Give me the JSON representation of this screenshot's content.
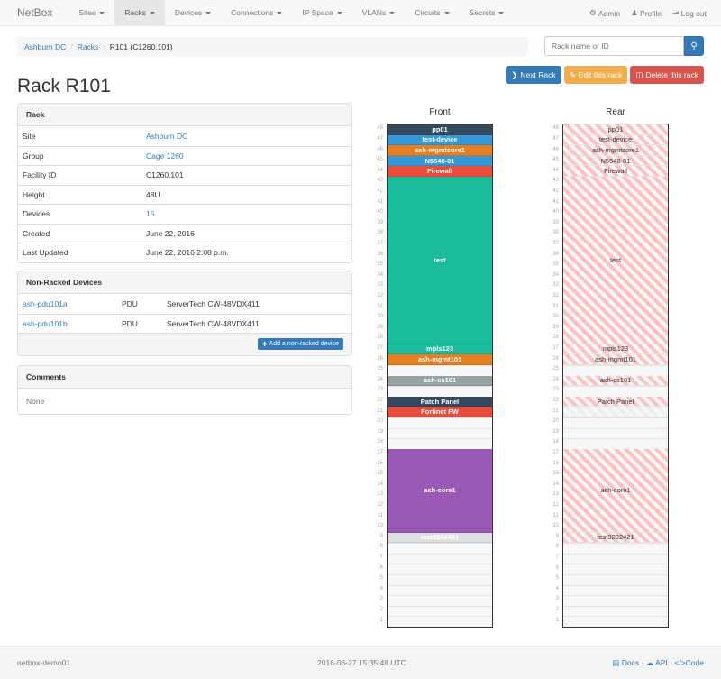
{
  "navbar": {
    "brand": "NetBox",
    "items": [
      {
        "label": "Sites"
      },
      {
        "label": "Racks",
        "active": true
      },
      {
        "label": "Devices"
      },
      {
        "label": "Connections"
      },
      {
        "label": "IP Space"
      },
      {
        "label": "VLANs"
      },
      {
        "label": "Circuits"
      },
      {
        "label": "Secrets"
      }
    ],
    "right": [
      {
        "icon": "gear-icon",
        "label": "Admin"
      },
      {
        "icon": "user-icon",
        "label": "Profile"
      },
      {
        "icon": "logout-icon",
        "label": "Log out"
      }
    ]
  },
  "breadcrumb": [
    "Ashburn DC",
    "Racks",
    "R101 (C1260.101)"
  ],
  "search": {
    "placeholder": "Rack name or ID",
    "icon": "search-icon"
  },
  "actions": {
    "next": "Next Rack",
    "edit": "Edit this rack",
    "delete": "Delete this rack",
    "colors": {
      "next": "#337ab7",
      "edit": "#f0ad4e",
      "delete": "#d9534f"
    }
  },
  "title": "Rack R101",
  "rack_panel": {
    "heading": "Rack",
    "rows": [
      {
        "k": "Site",
        "v": "Ashburn DC",
        "link": true
      },
      {
        "k": "Group",
        "v": "Cage 1260",
        "link": true
      },
      {
        "k": "Facility ID",
        "v": "C1260.101"
      },
      {
        "k": "Height",
        "v": "48U"
      },
      {
        "k": "Devices",
        "v": "15",
        "link": true
      },
      {
        "k": "Created",
        "v": "June 22, 2016"
      },
      {
        "k": "Last Updated",
        "v": "June 22, 2016 2:08 p.m."
      }
    ]
  },
  "nonracked": {
    "heading": "Non-Racked Devices",
    "rows": [
      {
        "name": "ash-pdu101a",
        "role": "PDU",
        "type": "ServerTech CW-48VDX411"
      },
      {
        "name": "ash-pdu101b",
        "role": "PDU",
        "type": "ServerTech CW-48VDX411"
      }
    ],
    "add": "Add a non-racked device"
  },
  "comments": {
    "heading": "Comments",
    "body": "None"
  },
  "rack": {
    "units": 48,
    "front_title": "Front",
    "rear_title": "Rear",
    "front": [
      {
        "u": 48,
        "h": 1,
        "name": "pp01",
        "color": "#34495e"
      },
      {
        "u": 47,
        "h": 1,
        "name": "test-device",
        "color": "#3498db"
      },
      {
        "u": 46,
        "h": 1,
        "name": "ash-mgmtcore1",
        "color": "#e67e22"
      },
      {
        "u": 45,
        "h": 1,
        "name": "N5548-01",
        "color": "#3498db"
      },
      {
        "u": 44,
        "h": 1,
        "name": "Firewall",
        "color": "#e74c3c"
      },
      {
        "u": 43,
        "h": 16,
        "name": "test",
        "color": "#1abc9c"
      },
      {
        "u": 27,
        "h": 1,
        "name": "mpls123",
        "color": "#1abc9c"
      },
      {
        "u": 26,
        "h": 1,
        "name": "ash-mgmt101",
        "color": "#e67e22"
      },
      {
        "u": 24,
        "h": 1,
        "name": "ash-cs101",
        "color": "#95a5a6"
      },
      {
        "u": 22,
        "h": 1,
        "name": "Patch Panel",
        "color": "#34495e"
      },
      {
        "u": 21,
        "h": 1,
        "name": "Fortinet FW",
        "color": "#e74c3c"
      },
      {
        "u": 17,
        "h": 8,
        "name": "ash-core1",
        "color": "#9b59b6"
      },
      {
        "u": 9,
        "h": 1,
        "name": "test3232421",
        "color": "#dde1e3"
      }
    ],
    "rear": [
      {
        "u": 48,
        "h": 1,
        "name": "pp01"
      },
      {
        "u": 47,
        "h": 1,
        "name": "test-device"
      },
      {
        "u": 46,
        "h": 1,
        "name": "ash-mgmtcore1"
      },
      {
        "u": 45,
        "h": 1,
        "name": "N5548-01"
      },
      {
        "u": 44,
        "h": 1,
        "name": "Firewall"
      },
      {
        "u": 43,
        "h": 16,
        "name": "test"
      },
      {
        "u": 27,
        "h": 1,
        "name": "mpls123"
      },
      {
        "u": 26,
        "h": 1,
        "name": "ash-mgmt101"
      },
      {
        "u": 24,
        "h": 1,
        "name": "ash-cs101"
      },
      {
        "u": 22,
        "h": 1,
        "name": "Patch Panel"
      },
      {
        "u": 21,
        "h": 1,
        "name": "",
        "faint": true
      },
      {
        "u": 17,
        "h": 8,
        "name": "ash-core1"
      },
      {
        "u": 9,
        "h": 1,
        "name": "test3232421"
      }
    ]
  },
  "footer": {
    "host": "netbox-demo01",
    "time": "2016-06-27 15:35:48 UTC",
    "docs": "Docs",
    "api": "API",
    "code": "Code",
    "sep": "·"
  }
}
